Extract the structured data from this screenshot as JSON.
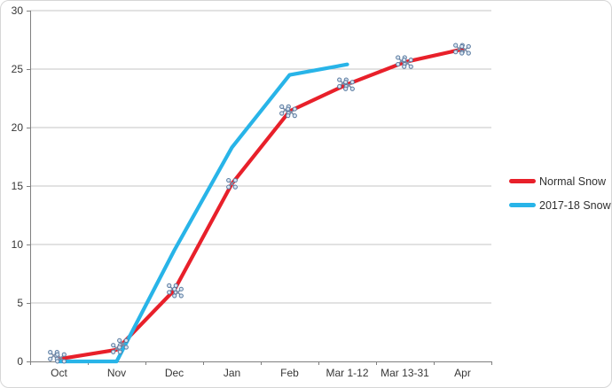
{
  "chart_data": {
    "type": "line",
    "title": "",
    "xlabel": "",
    "ylabel": "",
    "categories": [
      "Oct",
      "Nov",
      "Dec",
      "Jan",
      "Feb",
      "Mar 1-12",
      "Mar 13-31",
      "Apr"
    ],
    "series": [
      {
        "name": "Normal Snow",
        "color": "#e8202a",
        "values": [
          0.2,
          1.0,
          6.1,
          15.2,
          21.4,
          23.7,
          25.6,
          26.7
        ]
      },
      {
        "name": "2017-18 Snow",
        "color": "#28b4e8",
        "values": [
          0,
          0,
          9.5,
          18.3,
          24.5,
          25.4,
          null,
          null
        ]
      }
    ],
    "ylim": [
      0,
      30
    ],
    "yticks": [
      0,
      5,
      10,
      15,
      20,
      25,
      30
    ],
    "grid": "horizontal",
    "legend_position": "right",
    "markers": [
      {
        "cat": 0,
        "value": 0.5,
        "dx": -6
      },
      {
        "cat": 0,
        "value": 0.3,
        "dx": 2
      },
      {
        "cat": 1,
        "value": 1.1,
        "dx": 0
      },
      {
        "cat": 1,
        "value": 1.5,
        "dx": 7
      },
      {
        "cat": 2,
        "value": 6.2,
        "dx": -2
      },
      {
        "cat": 2,
        "value": 5.9,
        "dx": 4
      },
      {
        "cat": 3,
        "value": 15.2,
        "dx": 0
      },
      {
        "cat": 4,
        "value": 21.5,
        "dx": -5
      },
      {
        "cat": 4,
        "value": 21.3,
        "dx": 2
      },
      {
        "cat": 5,
        "value": 23.8,
        "dx": -5
      },
      {
        "cat": 5,
        "value": 23.6,
        "dx": 2
      },
      {
        "cat": 6,
        "value": 25.7,
        "dx": -4
      },
      {
        "cat": 6,
        "value": 25.5,
        "dx": 3
      },
      {
        "cat": 7,
        "value": 26.75,
        "dx": -4
      },
      {
        "cat": 7,
        "value": 26.65,
        "dx": 3
      }
    ]
  },
  "legend": {
    "items": [
      {
        "label": "Normal Snow"
      },
      {
        "label": "2017-18 Snow"
      }
    ]
  },
  "colors": {
    "grid": "#c6c6c6",
    "axis": "#808080",
    "tick_text": "#363636",
    "marker_fill": "#dbe5f1",
    "marker_dot_stroke": "#5a7ba0",
    "marker_x_stroke": "#7e8fa9",
    "frame_border": "#d6d6d6",
    "background": "#ffffff"
  }
}
